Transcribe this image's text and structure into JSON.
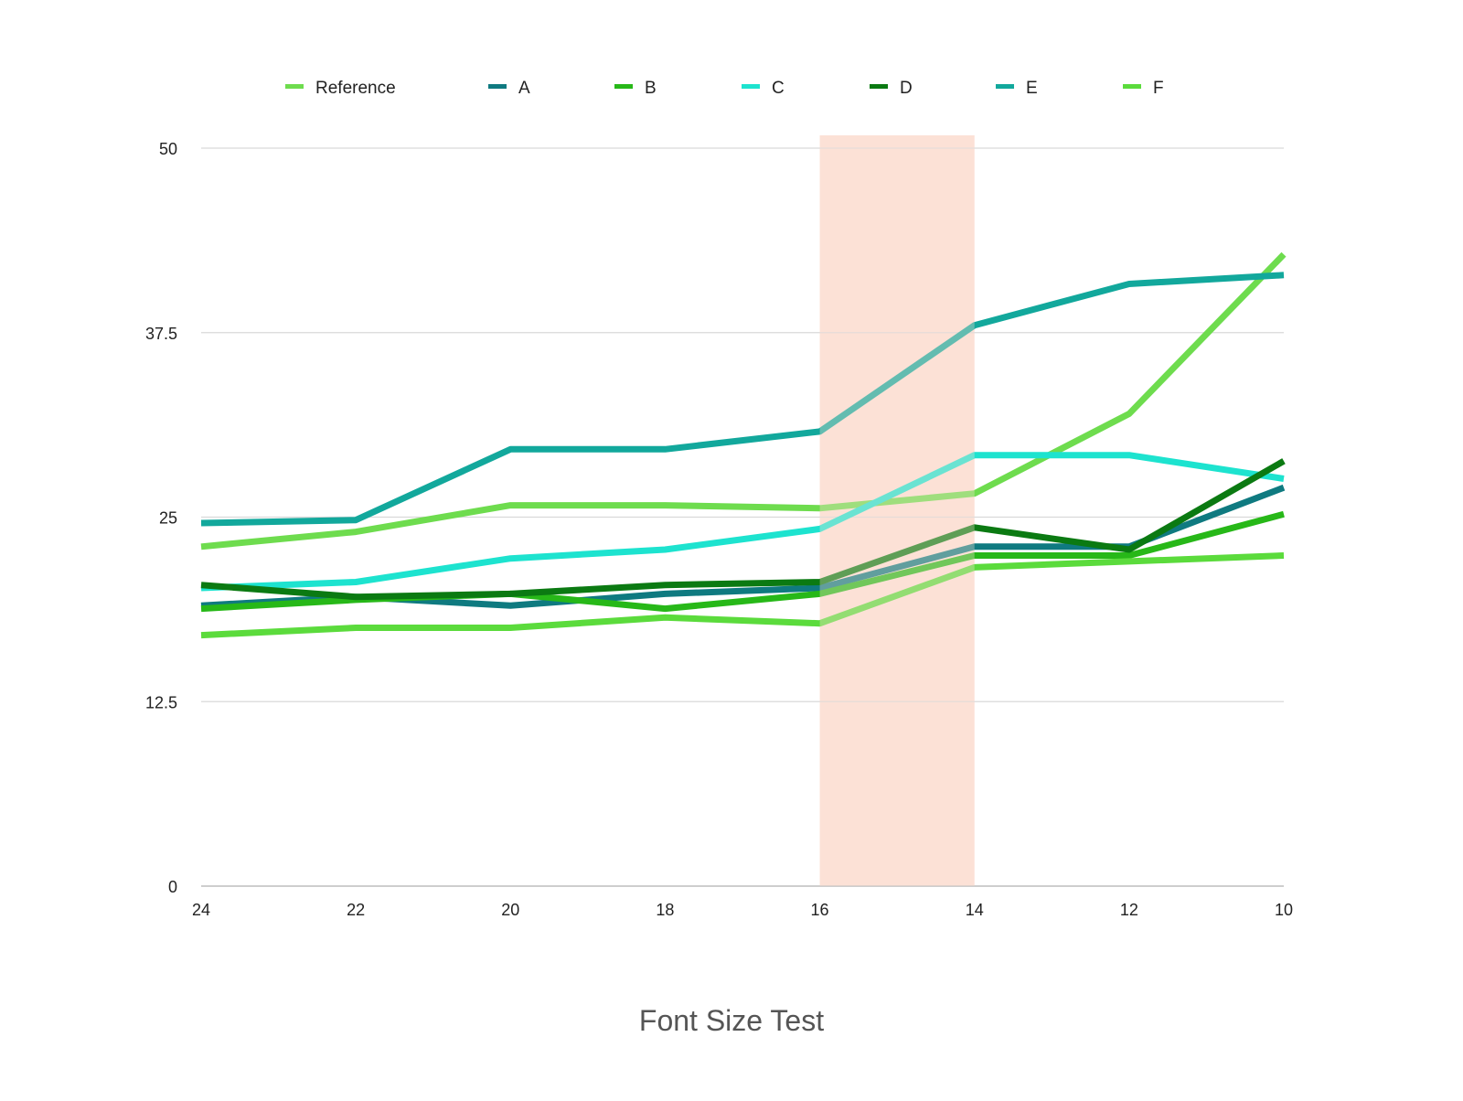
{
  "chart_data": {
    "type": "line",
    "title": "Font Size Test",
    "x": [
      24,
      22,
      20,
      18,
      16,
      14,
      12,
      10
    ],
    "ylim": [
      0,
      50
    ],
    "yticks": [
      "0",
      "12.5",
      "25",
      "37.5",
      "50"
    ],
    "xticks": [
      "24",
      "22",
      "20",
      "18",
      "16",
      "14",
      "12",
      "10"
    ],
    "grid": true,
    "legend_position": "top",
    "highlight_band": {
      "from": 16,
      "to": 14,
      "color": "#fce1d6"
    },
    "series": [
      {
        "name": "Reference",
        "color": "#6edc4e",
        "values": [
          23.0,
          24.0,
          25.8,
          25.8,
          25.6,
          26.6,
          32.0,
          42.8
        ]
      },
      {
        "name": "A",
        "color": "#0f7a80",
        "values": [
          19.0,
          19.6,
          19.0,
          19.8,
          20.2,
          23.0,
          23.0,
          27.0
        ]
      },
      {
        "name": "B",
        "color": "#27b818",
        "values": [
          18.8,
          19.4,
          19.8,
          18.8,
          19.8,
          22.4,
          22.4,
          25.2
        ]
      },
      {
        "name": "C",
        "color": "#1de3cf",
        "values": [
          20.2,
          20.6,
          22.2,
          22.8,
          24.2,
          29.2,
          29.2,
          27.6
        ]
      },
      {
        "name": "D",
        "color": "#0b7a12",
        "values": [
          20.4,
          19.6,
          19.8,
          20.4,
          20.6,
          24.3,
          22.8,
          28.8
        ]
      },
      {
        "name": "E",
        "color": "#12a89c",
        "values": [
          24.6,
          24.8,
          29.6,
          29.6,
          30.8,
          38.0,
          40.8,
          41.4
        ]
      },
      {
        "name": "F",
        "color": "#5bdb3c",
        "values": [
          17.0,
          17.5,
          17.5,
          18.2,
          17.8,
          21.6,
          22.0,
          22.4
        ]
      }
    ]
  }
}
